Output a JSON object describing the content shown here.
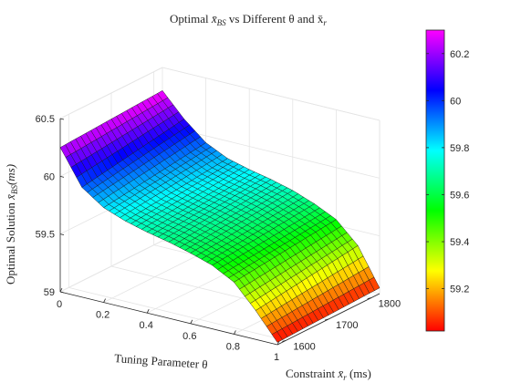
{
  "chart_data": {
    "type": "surface",
    "title_prefix": "Optimal ",
    "title_math": "x̄",
    "title_sub": "BS",
    "title_suffix": " vs Different θ and x̄",
    "title_sub2": "r",
    "xlabel": "Tuning Parameter θ",
    "ylabel_prefix": "Constraint ",
    "ylabel_math": "x̄",
    "ylabel_sub": "r",
    "ylabel_suffix": " (ms)",
    "zlabel_prefix": "Optimal Solution ",
    "zlabel_math": "x̄",
    "zlabel_sub": "BS",
    "zlabel_suffix": "(ms)",
    "x_ticks": [
      "0",
      "0.2",
      "0.4",
      "0.6",
      "0.8",
      "1"
    ],
    "y_ticks": [
      "1600",
      "1700",
      "1800"
    ],
    "z_ticks": [
      "59",
      "59.5",
      "60",
      "60.5"
    ],
    "xlim": [
      0,
      1
    ],
    "ylim": [
      1580,
      1820
    ],
    "zlim": [
      59,
      60.5
    ],
    "colorbar": {
      "colormap": "hsv",
      "range": [
        59.02,
        60.3
      ],
      "ticks": [
        "59.2",
        "59.4",
        "59.6",
        "59.8",
        "60",
        "60.2"
      ]
    },
    "surface_samples": {
      "theta": [
        0,
        0.1,
        0.2,
        0.3,
        0.4,
        0.5,
        0.6,
        0.7,
        0.8,
        0.9,
        1.0
      ],
      "x_r_1580": [
        60.25,
        59.95,
        59.82,
        59.75,
        59.7,
        59.66,
        59.61,
        59.55,
        59.45,
        59.25,
        59.02
      ],
      "x_r_1820": [
        60.3,
        60.1,
        59.94,
        59.85,
        59.8,
        59.76,
        59.71,
        59.64,
        59.55,
        59.37,
        59.05
      ]
    },
    "grid": true
  }
}
